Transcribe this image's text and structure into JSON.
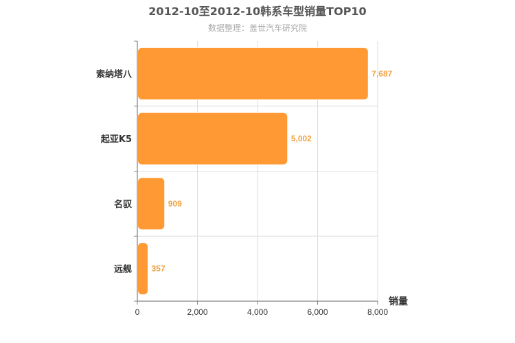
{
  "chart_data": {
    "type": "bar",
    "orientation": "horizontal",
    "title": "2012-10至2012-10韩系车型销量TOP10",
    "subtitle": "数据整理：盖世汽车研究院",
    "categories": [
      "索纳塔八",
      "起亚K5",
      "名驭",
      "远舰"
    ],
    "values": [
      7687,
      5002,
      909,
      357
    ],
    "value_labels": [
      "7,687",
      "5,002",
      "909",
      "357"
    ],
    "xlabel": "销量",
    "ylabel": "",
    "xlim": [
      0,
      8000
    ],
    "ticks": [
      0,
      2000,
      4000,
      6000,
      8000
    ],
    "tick_labels": [
      "0",
      "2,000",
      "4,000",
      "6,000",
      "8,000"
    ],
    "grid": true,
    "bar_color": "#ff9933",
    "label_color": "#f0a040"
  }
}
